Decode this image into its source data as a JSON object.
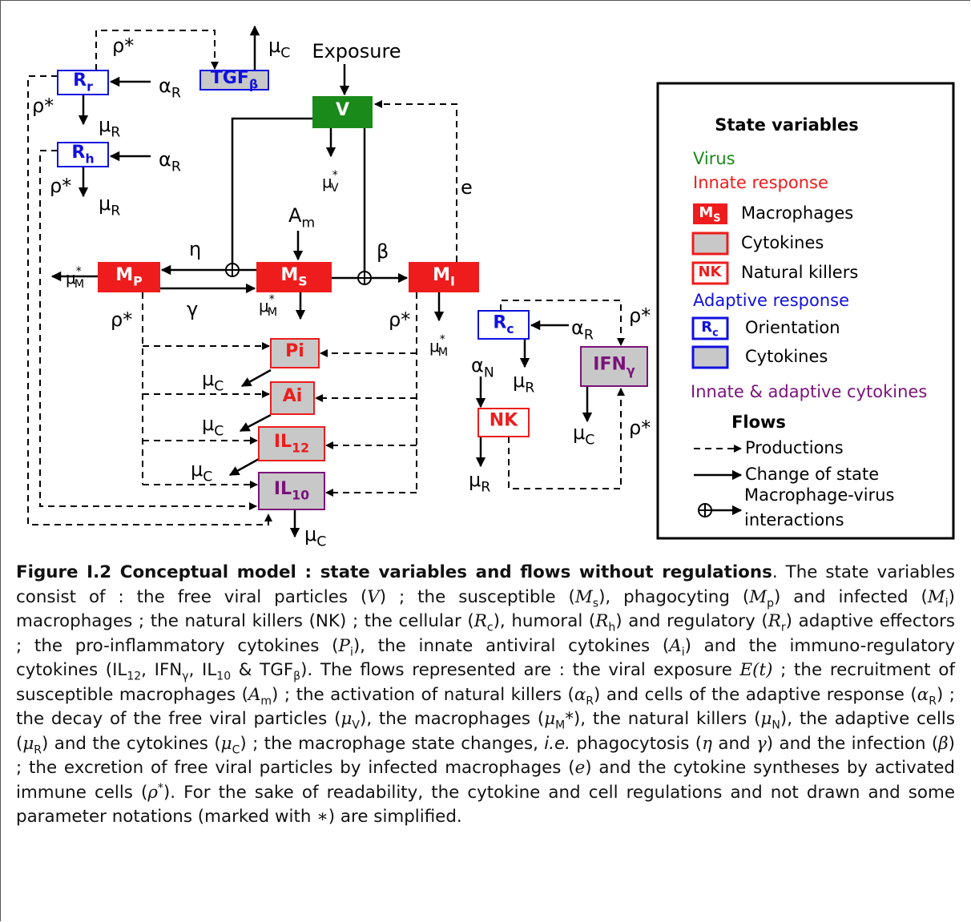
{
  "diagram": {
    "nodes": [
      {
        "label": "TGF",
        "sub": "β"
      },
      {
        "label": "R",
        "sub": "r"
      },
      {
        "label": "R",
        "sub": "h"
      },
      {
        "label": "V"
      },
      {
        "label": "M",
        "sub": "P"
      },
      {
        "label": "M",
        "sub": "S"
      },
      {
        "label": "M",
        "sub": "I"
      },
      {
        "label": "Pi"
      },
      {
        "label": "Ai"
      },
      {
        "label": "IL",
        "sub": "12"
      },
      {
        "label": "IL",
        "sub": "10"
      },
      {
        "label": "R",
        "sub": "c"
      },
      {
        "label": "IFN",
        "sub": "γ"
      },
      {
        "label": "NK"
      }
    ],
    "labels": [
      {
        "text": "ρ*"
      },
      {
        "text": "μ",
        "sub": "C"
      },
      {
        "text": "Exposure"
      },
      {
        "text": "α",
        "sub": "R"
      },
      {
        "text": "ρ*"
      },
      {
        "text": "μ",
        "sub": "R"
      },
      {
        "text": "α",
        "sub": "R"
      },
      {
        "text": "ρ*"
      },
      {
        "text": "μ",
        "sub": "R"
      },
      {
        "text": "μ",
        "sup": "*",
        "sub": "V"
      },
      {
        "text": "e"
      },
      {
        "text": "A",
        "sub": "m"
      },
      {
        "text": "η"
      },
      {
        "text": "β"
      },
      {
        "text": "μ",
        "sup": "*",
        "sub": "M"
      },
      {
        "text": "γ"
      },
      {
        "text": "μ",
        "sup": "*",
        "sub": "M"
      },
      {
        "text": "ρ*"
      },
      {
        "text": "ρ*"
      },
      {
        "text": "μ",
        "sup": "*",
        "sub": "M"
      },
      {
        "text": "μ",
        "sub": "C"
      },
      {
        "text": "μ",
        "sub": "C"
      },
      {
        "text": "μ",
        "sub": "C"
      },
      {
        "text": "μ",
        "sub": "C"
      },
      {
        "text": "ρ*"
      },
      {
        "text": "α",
        "sub": "R"
      },
      {
        "text": "α",
        "sub": "N"
      },
      {
        "text": "μ",
        "sub": "R"
      },
      {
        "text": "μ",
        "sub": "C"
      },
      {
        "text": "ρ*"
      },
      {
        "text": "μ",
        "sub": "R"
      }
    ]
  },
  "legend": {
    "title": "State variables",
    "virus": "Virus",
    "innate": "Innate response",
    "innate_items": [
      {
        "swatch": {
          "label": "M",
          "sub": "S"
        },
        "text": "Macrophages"
      },
      {
        "text": "Cytokines"
      },
      {
        "swatch": {
          "label": "NK"
        },
        "text": "Natural killers"
      }
    ],
    "adaptive": "Adaptive response",
    "adaptive_items": [
      {
        "swatch": {
          "label": "R",
          "sub": "c"
        },
        "text": "Orientation"
      },
      {
        "text": "Cytokines"
      }
    ],
    "mixed": "Innate & adaptive cytokines",
    "flows_title": "Flows",
    "flows": [
      {
        "text": "Productions"
      },
      {
        "text": "Change of state"
      },
      {
        "lines": [
          "Macrophage-virus",
          "interactions"
        ]
      }
    ]
  },
  "caption": {
    "title": "Figure I.2 Conceptual model : state variables and flows without regulations",
    "body": [
      ". The state variables consist of : the free viral particles (",
      "V",
      ") ; the susceptible (",
      "M",
      "s",
      "), phagocyting (",
      "M",
      "p",
      ") and infected (",
      "M",
      "i",
      ") macrophages ; the natural killers (NK) ; the cellular (",
      "R",
      "c",
      "), humoral (",
      "R",
      "h",
      ") and regulatory (",
      "R",
      "r",
      ") adaptive effectors ; the pro-inflammatory cytokines (",
      "P",
      "i",
      "), the innate antiviral cytokines (",
      "A",
      "i",
      ") and the immuno-regulatory cytokines (IL",
      "12",
      ", IFN",
      "γ",
      ", IL",
      "10",
      " & TGF",
      "β",
      "). The flows represented are : the viral exposure ",
      "E(t)",
      " ; the recruitment of susceptible macrophages (",
      "A",
      "m",
      ") ; the activation of natural killers (",
      "α",
      "R",
      ") and cells of the adaptive response (",
      "α",
      "R",
      ") ; the decay of the free viral particles (",
      "μ",
      "V",
      "), the macrophages (",
      "μ",
      "M",
      "*), the natural killers (",
      "μ",
      "N",
      "), the adaptive cells (",
      "μ",
      "R",
      ") and the cytokines (",
      "μ",
      "C",
      ") ; the macrophage state changes, ",
      "i.e.",
      " phagocytosis (",
      "η",
      " and ",
      "γ",
      ") and the infection (",
      "β",
      ") ; the excretion of free viral particles by infected macrophages (",
      "e",
      ") and the cytokine syntheses by activated immune cells (",
      "ρ",
      "*",
      "). For the sake of readability, the cytokine and cell regulations and not drawn and some parameter notations (marked with ",
      "∗",
      ") are simplified."
    ]
  }
}
